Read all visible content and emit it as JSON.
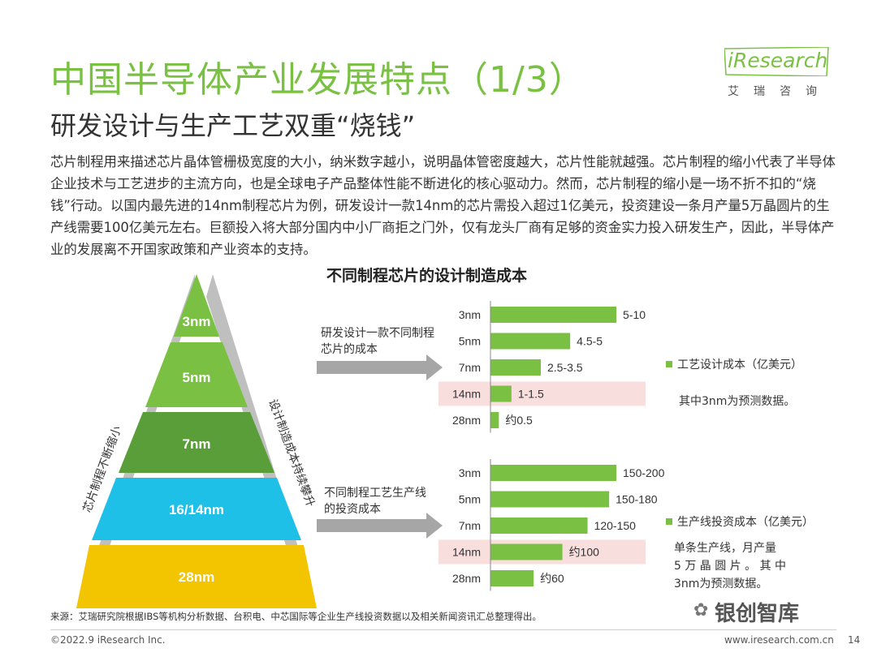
{
  "header": {
    "title": "中国半导体产业发展特点（1/3）",
    "subtitle": "研发设计与生产工艺双重“烧钱”"
  },
  "logo": {
    "brand": "iResearch",
    "brand_cn": "艾瑞咨询"
  },
  "body_text": "芯片制程用来描述芯片晶体管栅极宽度的大小，纳米数字越小，说明晶体管密度越大，芯片性能就越强。芯片制程的缩小代表了半导体企业技术与工艺进步的主流方向，也是全球电子产品整体性能不断进化的核心驱动力。然而，芯片制程的缩小是一场不折不扣的“烧钱”行动。以国内最先进的14nm制程芯片为例，研发设计一款14nm的芯片需投入超过1亿美元，投资建设一条月产量5万晶圆片的生产线需要100亿美元左右。巨额投入将大部分国内中小厂商拒之门外，仅有龙头厂商有足够的资金实力投入研发生产，因此，半导体产业的发展离不开国家政策和产业资本的支持。",
  "pyramid": {
    "levels": [
      "3nm",
      "5nm",
      "7nm",
      "16/14nm",
      "28nm"
    ],
    "colors": [
      "#7ac143",
      "#7ac143",
      "#5a9e3a",
      "#1fc0e8",
      "#f2c500"
    ],
    "left_arrow_label": "芯片制程不断缩小",
    "right_arrow_label": "设计制造成本持续攀升"
  },
  "colors": {
    "accent": "#7ac143",
    "highlight": "#f9dede",
    "arrow": "#a6a6a6"
  },
  "chart_data": [
    {
      "type": "bar",
      "title": "不同制程芯片的设计制造成本",
      "arrow_label": "研发设计一款不同制程芯片的成本",
      "categories": [
        "3nm",
        "5nm",
        "7nm",
        "14nm",
        "28nm"
      ],
      "values": [
        7.5,
        4.75,
        3.0,
        1.25,
        0.5
      ],
      "value_labels": [
        "5-10",
        "4.5-5",
        "2.5-3.5",
        "1-1.5",
        "约0.5"
      ],
      "highlight": "14nm",
      "legend": "工艺设计成本（亿美元）",
      "note": "其中3nm为预测数据。"
    },
    {
      "type": "bar",
      "arrow_label": "不同制程工艺生产线的投资成本",
      "categories": [
        "3nm",
        "5nm",
        "7nm",
        "14nm",
        "28nm"
      ],
      "values": [
        175,
        165,
        135,
        100,
        60
      ],
      "value_labels": [
        "150-200",
        "150-180",
        "120-150",
        "约100",
        "约60"
      ],
      "highlight": "14nm",
      "legend": "生产线投资成本（亿美元）",
      "note_lines": [
        "单条生产线，月产量",
        "5 万 晶 圆 片 。 其 中",
        "3nm为预测数据。"
      ]
    }
  ],
  "footer": {
    "source": "来源：艾瑞研究院根据IBS等机构分析数据、台积电、中芯国际等企业生产线投资数据以及相关新闻资讯汇总整理得出。",
    "copyright": "©2022.9 iResearch Inc.",
    "url": "www.iresearch.com.cn",
    "page": "14",
    "watermark": "银创智库"
  }
}
